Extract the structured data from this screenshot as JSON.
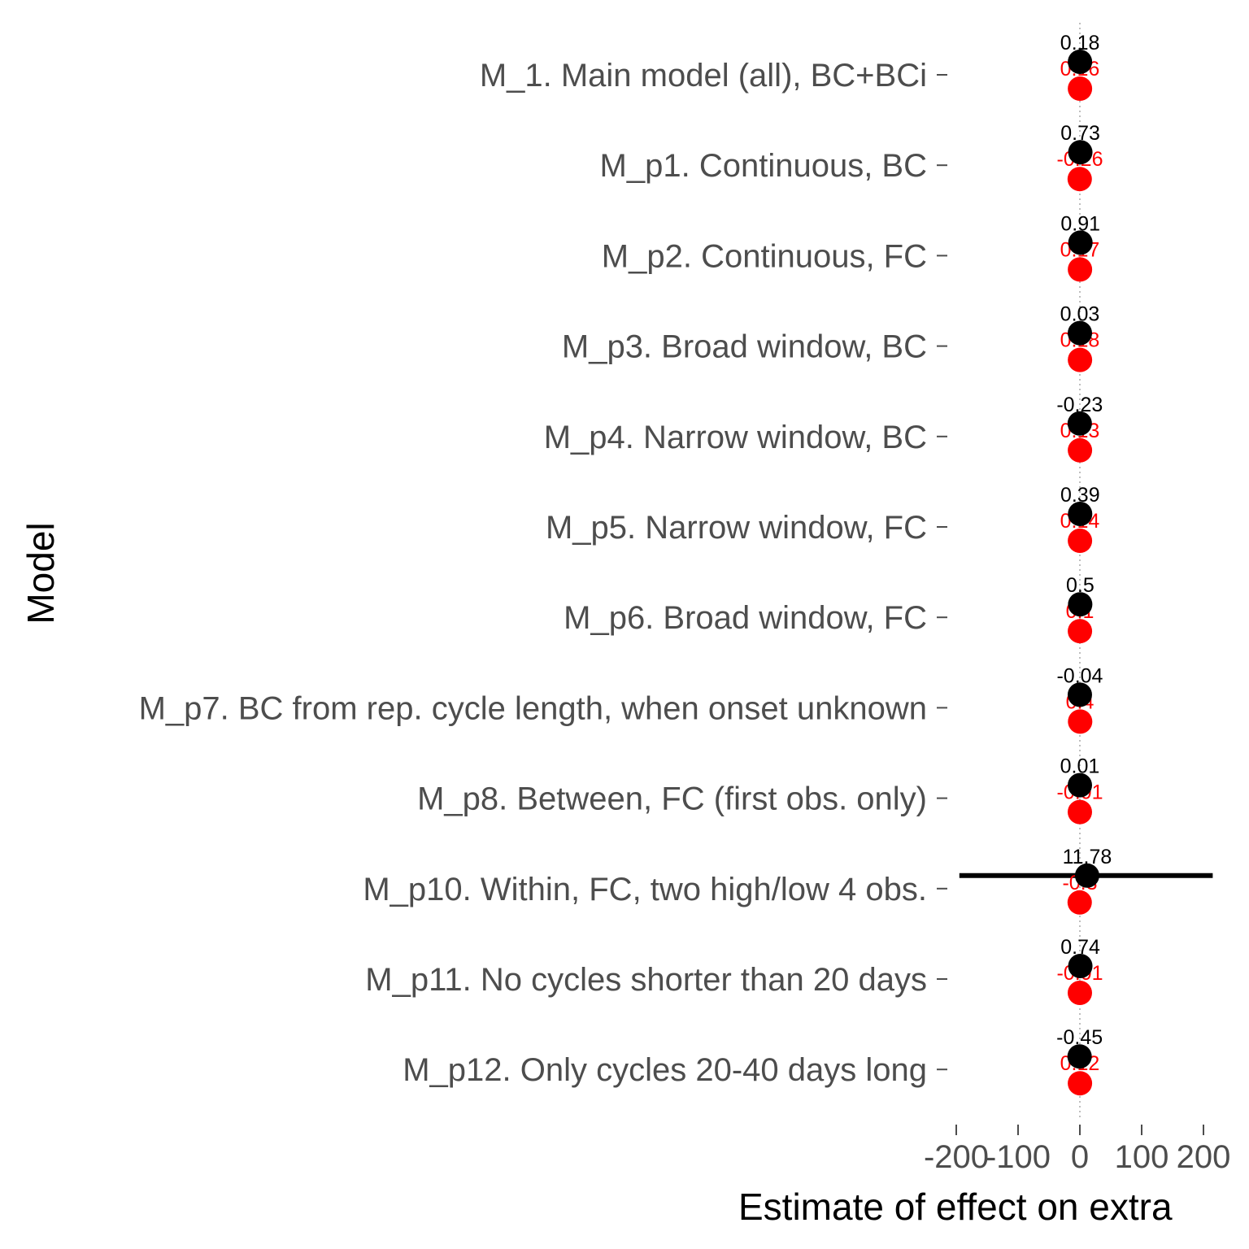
{
  "chart_data": {
    "type": "scatter",
    "subtype": "dot-and-whisker",
    "xlabel": "Estimate of effect on extra",
    "ylabel": "Model",
    "xlim": [
      -230,
      230
    ],
    "x_ticks": [
      -200,
      -100,
      0,
      100,
      200
    ],
    "x_tick_labels": [
      "-200",
      "-100",
      "0",
      "100",
      "200"
    ],
    "grid": false,
    "zero_line": "dotted",
    "colors": {
      "primary": "#000000",
      "secondary": "#ff0000",
      "zero_line": "#bebebe"
    },
    "categories": [
      "M_1. Main model (all), BC+BCi",
      "M_p1. Continuous, BC",
      "M_p2. Continuous, FC",
      "M_p3. Broad window, BC",
      "M_p4. Narrow window, BC",
      "M_p5. Narrow window, FC",
      "M_p6. Broad window, FC",
      "M_p7. BC from rep. cycle length, when onset unknown",
      "M_p8. Between, FC (first obs. only)",
      "M_p10. Within, FC, two high/low 4 obs.",
      "M_p11. No cycles shorter than 20 days",
      "M_p12. Only cycles 20-40 days long"
    ],
    "series": [
      {
        "color": "#000000",
        "values": [
          0.18,
          0.73,
          0.91,
          0.03,
          -0.23,
          0.39,
          0.5,
          -0.04,
          0.01,
          11.78,
          0.74,
          -0.45
        ],
        "labels": [
          "0.18",
          "0.73",
          "0.91",
          "0.03",
          "-0.23",
          "0.39",
          "0.5",
          "-0.04",
          "0.01",
          "11.78",
          "0.74",
          "-0.45"
        ],
        "ci_low": [
          null,
          null,
          null,
          null,
          null,
          null,
          null,
          null,
          null,
          -195,
          null,
          null
        ],
        "ci_high": [
          null,
          null,
          null,
          null,
          null,
          null,
          null,
          null,
          null,
          215,
          null,
          null
        ]
      },
      {
        "color": "#ff0000",
        "values": [
          0.16,
          -0.26,
          0.17,
          0.18,
          0.13,
          0.14,
          0.1,
          0.4,
          -0.01,
          -0.3,
          -0.01,
          0.12
        ],
        "labels": [
          "0.16",
          "-0.26",
          "0.17",
          "0.18",
          "0.13",
          "0.14",
          "0.1",
          "0.4",
          "-0.01",
          "-0.3",
          "-0.01",
          "0.12"
        ]
      }
    ]
  }
}
